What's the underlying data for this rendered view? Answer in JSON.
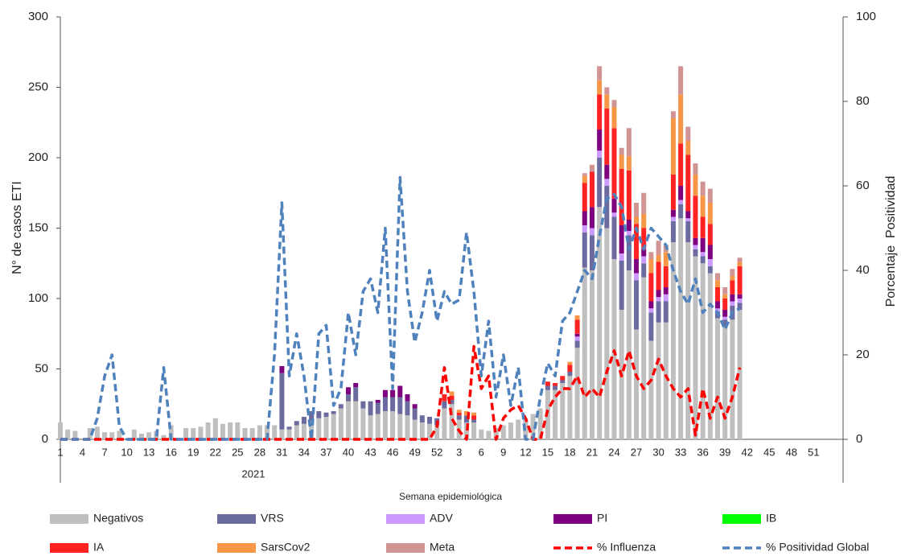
{
  "chart_data": {
    "type": "bar",
    "stacked": true,
    "y_label": "N° de casos ETI",
    "y2_label": "Porcentaje  Positividad",
    "x_label": "Semana epidemiológica",
    "annotations": [
      "2021"
    ],
    "categories": [
      1,
      null,
      null,
      4,
      null,
      null,
      7,
      null,
      null,
      10,
      null,
      null,
      13,
      null,
      null,
      16,
      null,
      null,
      19,
      null,
      null,
      22,
      null,
      null,
      25,
      null,
      null,
      28,
      null,
      null,
      31,
      null,
      null,
      34,
      null,
      null,
      37,
      null,
      null,
      40,
      null,
      null,
      43,
      null,
      null,
      46,
      null,
      null,
      49,
      null,
      null,
      52,
      null,
      null,
      3,
      null,
      null,
      6,
      null,
      null,
      9,
      null,
      null,
      12,
      null,
      null,
      15,
      null,
      null,
      18,
      null,
      null,
      21,
      null,
      null,
      24,
      null,
      null,
      27,
      null,
      null,
      30,
      null,
      null,
      33,
      null,
      null,
      36,
      null,
      null,
      39,
      null,
      null,
      42,
      null,
      null,
      45,
      null,
      null,
      48,
      null,
      null,
      51,
      null
    ],
    "ylim": [
      0,
      300
    ],
    "yticks": [
      0,
      50,
      100,
      150,
      200,
      250,
      300
    ],
    "y2lim": [
      0,
      100
    ],
    "y2ticks": [
      0,
      20,
      40,
      60,
      80,
      100
    ],
    "series": [
      {
        "name": "Negativos",
        "color": "#bfbfbf",
        "values": [
          12,
          7,
          6,
          0,
          8,
          9,
          5,
          5,
          6,
          0,
          7,
          4,
          5,
          6,
          3,
          10,
          0,
          8,
          8,
          9,
          12,
          15,
          11,
          12,
          12,
          8,
          8,
          10,
          10,
          10,
          7,
          7,
          10,
          11,
          13,
          15,
          16,
          18,
          22,
          27,
          27,
          22,
          17,
          18,
          20,
          20,
          18,
          17,
          14,
          12,
          11,
          10,
          22,
          25,
          14,
          12,
          12,
          7,
          6,
          8,
          10,
          12,
          14,
          15,
          18,
          22,
          35,
          35,
          40,
          45,
          65,
          122,
          120,
          165,
          150,
          128,
          92,
          120,
          78,
          115,
          70,
          83,
          83,
          140,
          157,
          140,
          130,
          125,
          118,
          86,
          80,
          85,
          92,
          null,
          null,
          null,
          null,
          null,
          null,
          null,
          null,
          null,
          null,
          null
        ]
      },
      {
        "name": "VRS",
        "color": "#6b6b9f",
        "values": [
          0,
          0,
          0,
          0,
          0,
          0,
          0,
          0,
          0,
          0,
          0,
          0,
          0,
          0,
          0,
          0,
          0,
          0,
          0,
          0,
          0,
          0,
          0,
          0,
          0,
          0,
          0,
          0,
          0,
          0,
          40,
          2,
          3,
          5,
          7,
          5,
          3,
          2,
          3,
          5,
          10,
          5,
          10,
          8,
          10,
          10,
          12,
          10,
          8,
          5,
          5,
          5,
          5,
          3,
          3,
          5,
          2,
          0,
          0,
          0,
          0,
          0,
          0,
          0,
          0,
          0,
          3,
          3,
          2,
          3,
          5,
          25,
          25,
          35,
          30,
          30,
          35,
          25,
          35,
          10,
          20,
          15,
          15,
          15,
          10,
          15,
          5,
          5,
          5,
          5,
          5,
          10,
          5,
          null,
          null,
          null,
          null,
          null,
          null,
          null,
          null,
          null,
          null,
          null
        ]
      },
      {
        "name": "ADV",
        "color": "#cc99ff",
        "values": [
          0,
          0,
          0,
          0,
          0,
          0,
          0,
          0,
          0,
          0,
          0,
          0,
          0,
          0,
          0,
          0,
          0,
          0,
          0,
          0,
          0,
          0,
          0,
          0,
          0,
          0,
          0,
          0,
          0,
          0,
          0,
          0,
          0,
          0,
          0,
          0,
          0,
          0,
          0,
          0,
          0,
          0,
          0,
          0,
          0,
          0,
          0,
          0,
          0,
          0,
          0,
          0,
          0,
          0,
          0,
          0,
          0,
          0,
          0,
          0,
          0,
          0,
          0,
          0,
          0,
          0,
          0,
          0,
          0,
          0,
          3,
          5,
          5,
          5,
          5,
          3,
          5,
          3,
          5,
          5,
          3,
          3,
          5,
          3,
          3,
          2,
          3,
          3,
          5,
          2,
          2,
          3,
          3,
          null,
          null,
          null,
          null,
          null,
          null,
          null,
          null,
          null,
          null,
          null
        ]
      },
      {
        "name": "PI",
        "color": "#7f007f",
        "values": [
          0,
          0,
          0,
          0,
          0,
          0,
          0,
          0,
          0,
          0,
          0,
          0,
          0,
          0,
          0,
          0,
          0,
          0,
          0,
          0,
          0,
          0,
          0,
          0,
          0,
          0,
          0,
          0,
          0,
          0,
          5,
          0,
          0,
          0,
          0,
          0,
          0,
          0,
          0,
          5,
          3,
          0,
          0,
          2,
          5,
          5,
          8,
          5,
          3,
          0,
          0,
          0,
          0,
          0,
          0,
          0,
          0,
          0,
          0,
          0,
          0,
          0,
          0,
          0,
          0,
          0,
          0,
          0,
          0,
          0,
          2,
          10,
          15,
          15,
          10,
          10,
          20,
          8,
          10,
          5,
          5,
          5,
          5,
          5,
          10,
          5,
          5,
          10,
          10,
          5,
          5,
          5,
          3,
          null,
          null,
          null,
          null,
          null,
          null,
          null,
          null,
          null,
          null,
          null
        ]
      },
      {
        "name": "IB",
        "color": "#00ff00",
        "values": [
          0,
          0,
          0,
          0,
          0,
          0,
          0,
          0,
          0,
          0,
          0,
          0,
          0,
          0,
          0,
          0,
          0,
          0,
          0,
          0,
          0,
          0,
          0,
          0,
          0,
          0,
          0,
          0,
          0,
          0,
          0,
          0,
          0,
          0,
          0,
          0,
          0,
          0,
          0,
          0,
          0,
          0,
          0,
          0,
          0,
          0,
          0,
          0,
          0,
          0,
          0,
          0,
          0,
          0,
          0,
          0,
          0,
          0,
          0,
          0,
          0,
          0,
          0,
          0,
          0,
          0,
          0,
          0,
          0,
          0,
          0,
          0,
          0,
          0,
          0,
          0,
          0,
          0,
          0,
          0,
          0,
          0,
          0,
          0,
          0,
          0,
          0,
          0,
          0,
          0,
          0,
          0,
          0,
          null,
          null,
          null,
          null,
          null,
          null,
          null,
          null,
          null,
          null,
          null
        ]
      },
      {
        "name": "IA",
        "color": "#ff2222",
        "values": [
          0,
          0,
          0,
          0,
          0,
          0,
          0,
          0,
          0,
          0,
          0,
          0,
          0,
          0,
          0,
          0,
          0,
          0,
          0,
          0,
          0,
          0,
          0,
          0,
          0,
          0,
          0,
          0,
          0,
          0,
          0,
          0,
          0,
          0,
          0,
          0,
          0,
          0,
          0,
          0,
          0,
          0,
          0,
          0,
          0,
          0,
          0,
          0,
          0,
          0,
          0,
          0,
          5,
          3,
          2,
          0,
          3,
          0,
          0,
          0,
          0,
          0,
          0,
          0,
          0,
          0,
          3,
          2,
          3,
          5,
          10,
          20,
          25,
          25,
          40,
          50,
          40,
          35,
          25,
          15,
          20,
          20,
          15,
          25,
          30,
          40,
          30,
          15,
          15,
          10,
          8,
          10,
          20,
          null,
          null,
          null,
          null,
          null,
          null,
          null,
          null,
          null,
          null,
          null
        ]
      },
      {
        "name": "SarsCov2",
        "color": "#f79646",
        "values": [
          0,
          0,
          0,
          0,
          0,
          0,
          0,
          0,
          0,
          0,
          0,
          0,
          0,
          0,
          0,
          0,
          0,
          0,
          0,
          0,
          0,
          0,
          0,
          0,
          0,
          0,
          0,
          0,
          0,
          0,
          0,
          0,
          0,
          0,
          0,
          0,
          0,
          0,
          0,
          0,
          0,
          0,
          0,
          0,
          0,
          0,
          0,
          0,
          0,
          0,
          0,
          0,
          0,
          3,
          2,
          3,
          2,
          0,
          0,
          0,
          0,
          0,
          0,
          0,
          0,
          0,
          0,
          0,
          0,
          2,
          3,
          5,
          0,
          10,
          10,
          15,
          10,
          10,
          5,
          10,
          10,
          5,
          10,
          40,
          35,
          10,
          15,
          15,
          15,
          5,
          3,
          3,
          3,
          null,
          null,
          null,
          null,
          null,
          null,
          null,
          null,
          null,
          null,
          null
        ]
      },
      {
        "name": "Meta",
        "color": "#d09494",
        "values": [
          0,
          0,
          0,
          0,
          0,
          0,
          0,
          0,
          0,
          0,
          0,
          0,
          0,
          0,
          0,
          0,
          0,
          0,
          0,
          0,
          0,
          0,
          0,
          0,
          0,
          0,
          0,
          0,
          0,
          0,
          0,
          0,
          0,
          0,
          0,
          0,
          0,
          0,
          0,
          0,
          0,
          0,
          0,
          0,
          0,
          0,
          0,
          0,
          0,
          0,
          0,
          0,
          0,
          0,
          0,
          0,
          0,
          0,
          0,
          0,
          0,
          0,
          0,
          0,
          0,
          0,
          0,
          0,
          0,
          0,
          0,
          2,
          5,
          10,
          5,
          5,
          5,
          20,
          10,
          15,
          5,
          10,
          5,
          5,
          20,
          10,
          8,
          10,
          10,
          5,
          5,
          5,
          3,
          null,
          null,
          null,
          null,
          null,
          null,
          null,
          null,
          null,
          null,
          null
        ]
      },
      {
        "name": "% Influenza",
        "color": "#ff0000",
        "type": "line",
        "axis": "y2",
        "dashed": true,
        "values": [
          0,
          0,
          0,
          0,
          0,
          0,
          0,
          0,
          0,
          0,
          0,
          0,
          0,
          0,
          0,
          0,
          0,
          0,
          0,
          0,
          0,
          0,
          0,
          0,
          0,
          0,
          0,
          0,
          0,
          0,
          0,
          0,
          0,
          0,
          0,
          0,
          0,
          0,
          0,
          0,
          0,
          0,
          0,
          0,
          0,
          0,
          0,
          0,
          0,
          0,
          0,
          3,
          17,
          5,
          2,
          0,
          22,
          12,
          15,
          0,
          5,
          7,
          8,
          5,
          0,
          0,
          7,
          10,
          12,
          12,
          15,
          10,
          12,
          10,
          16,
          21,
          15,
          21,
          15,
          12,
          14,
          19,
          15,
          12,
          10,
          12,
          1,
          12,
          5,
          10,
          5,
          10,
          17,
          null,
          null,
          null,
          null,
          null,
          null,
          null,
          null,
          null,
          null,
          null
        ]
      },
      {
        "name": "% Positividad Global",
        "color": "#4f81bd",
        "type": "line",
        "axis": "y2",
        "dashed": true,
        "values": [
          0,
          0,
          0,
          0,
          0,
          5,
          15,
          20,
          3,
          0,
          0,
          0,
          0,
          0,
          17,
          0,
          0,
          0,
          0,
          0,
          0,
          0,
          0,
          0,
          0,
          0,
          0,
          0,
          0,
          20,
          56,
          15,
          25,
          15,
          0,
          25,
          27,
          8,
          12,
          30,
          20,
          35,
          38,
          30,
          50,
          12,
          62,
          35,
          23,
          30,
          40,
          28,
          35,
          32,
          33,
          49,
          35,
          15,
          28,
          10,
          20,
          8,
          17,
          0,
          0,
          10,
          18,
          15,
          28,
          30,
          35,
          40,
          38,
          48,
          57,
          58,
          55,
          45,
          50,
          45,
          50,
          48,
          46,
          40,
          35,
          32,
          38,
          30,
          32,
          30,
          26,
          30,
          31,
          null,
          null,
          null,
          null,
          null,
          null,
          null,
          null,
          null,
          null,
          null
        ]
      }
    ]
  }
}
